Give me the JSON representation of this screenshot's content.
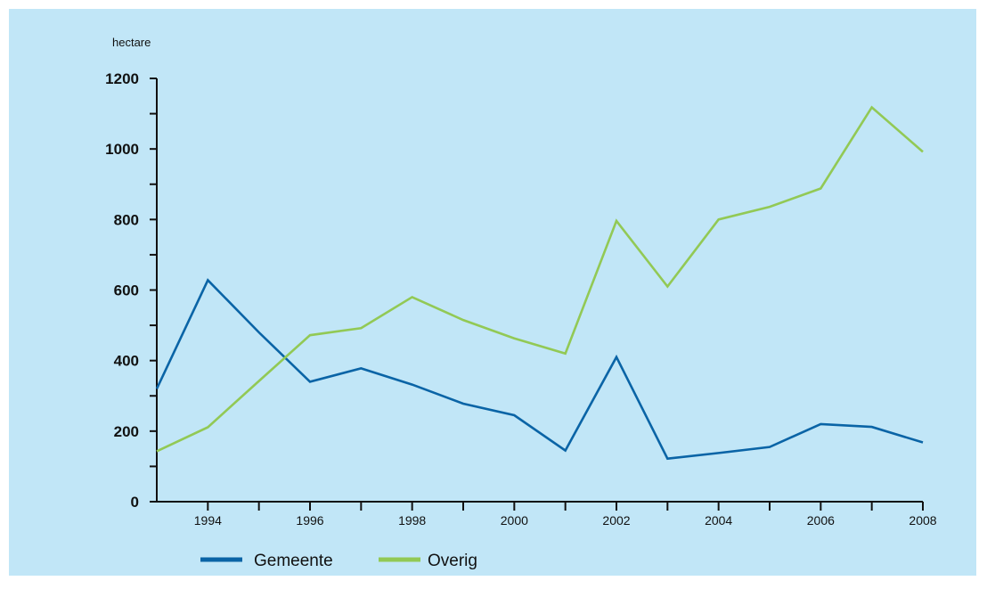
{
  "colors": {
    "background": "#c1e6f7",
    "gemeente": "#0a64a6",
    "overig": "#92c955",
    "axis": "#111111"
  },
  "chart_data": {
    "type": "line",
    "unit_label": "hectare",
    "x": [
      1993,
      1994,
      1995,
      1996,
      1997,
      1998,
      1999,
      2000,
      2001,
      2002,
      2003,
      2004,
      2005,
      2006,
      2007,
      2008
    ],
    "x_tick_labels": [
      "1994",
      "1996",
      "1998",
      "2000",
      "2002",
      "2004",
      "2006",
      "2008"
    ],
    "x_tick_values": [
      1994,
      1996,
      1998,
      2000,
      2002,
      2004,
      2006,
      2008
    ],
    "xlim": [
      1993,
      2008
    ],
    "ylim": [
      0,
      1200
    ],
    "y_ticks": [
      0,
      200,
      400,
      600,
      800,
      1000,
      1200
    ],
    "y_minor_ticks": [
      100,
      300,
      500,
      700,
      900,
      1100
    ],
    "grid": false,
    "legend_position": "bottom-left",
    "series": [
      {
        "name": "Gemeente",
        "color": "#0a64a6",
        "values": [
          320,
          628,
          480,
          340,
          378,
          332,
          278,
          245,
          145,
          410,
          122,
          138,
          155,
          220,
          212,
          168
        ]
      },
      {
        "name": "Overig",
        "color": "#92c955",
        "values": [
          143,
          211,
          342,
          472,
          492,
          580,
          515,
          463,
          420,
          796,
          610,
          800,
          836,
          888,
          1118,
          992
        ]
      }
    ]
  }
}
